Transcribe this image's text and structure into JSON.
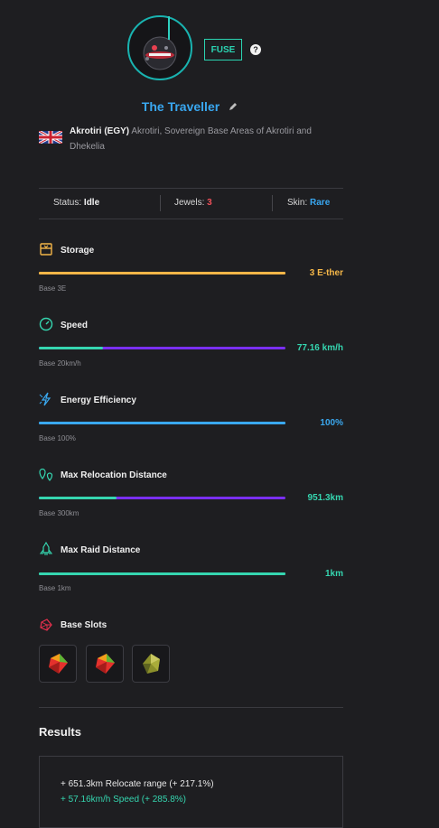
{
  "header": {
    "fuse_label": "FUSE",
    "help_label": "?",
    "title": "The Traveller"
  },
  "location": {
    "name": "Akrotiri (EGY)",
    "description": "Akrotiri, Sovereign Base Areas of Akrotiri and Dhekelia"
  },
  "status": {
    "status_label": "Status:",
    "status_value": "Idle",
    "jewels_label": "Jewels:",
    "jewels_value": "3",
    "skin_label": "Skin:",
    "skin_value": "Rare"
  },
  "stats": [
    {
      "label": "Storage",
      "value": "3 E-ther",
      "base": "Base 3E",
      "icon": "storage-icon",
      "fill": 1.0,
      "color": "#f4b648",
      "track": "#f4b648"
    },
    {
      "label": "Speed",
      "value": "77.16 km/h",
      "base": "Base 20km/h",
      "icon": "speedometer-icon",
      "fill": 0.26,
      "color": "#35d6b0",
      "track": "#7a2ff2"
    },
    {
      "label": "Energy Efficiency",
      "value": "100%",
      "base": "Base 100%",
      "icon": "lightning-icon",
      "fill": 1.0,
      "color": "#3aa8ef",
      "track": "#3aa8ef"
    },
    {
      "label": "Max Relocation Distance",
      "value": "951.3km",
      "base": "Base 300km",
      "icon": "location-pins-icon",
      "fill": 0.315,
      "color": "#35d6b0",
      "track": "#7a2ff2"
    },
    {
      "label": "Max Raid Distance",
      "value": "1km",
      "base": "Base 1km",
      "icon": "rocket-icon",
      "fill": 1.0,
      "color": "#35d6b0",
      "track": "#35d6b0"
    }
  ],
  "slots": {
    "label": "Base Slots",
    "items": [
      "red-jewel-icon",
      "red-jewel-icon",
      "olive-jewel-icon"
    ]
  },
  "results": {
    "title": "Results",
    "lines": [
      "+ 651.3km Relocate range (+ 217.1%)",
      "+ 57.16km/h Speed (+ 285.8%)"
    ]
  }
}
